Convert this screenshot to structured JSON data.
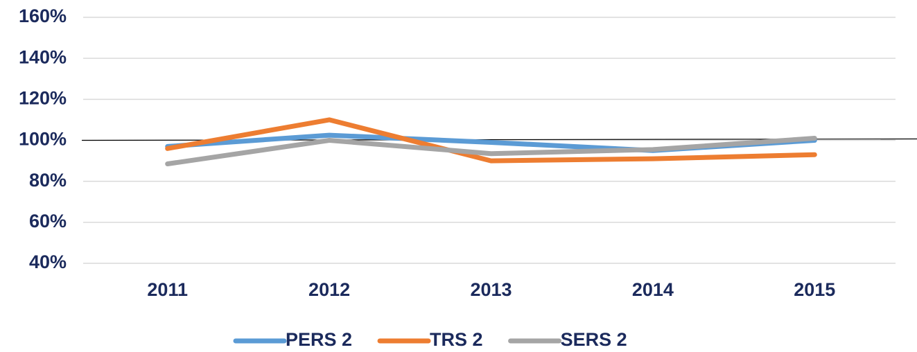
{
  "chart_data": {
    "type": "line",
    "categories": [
      "2011",
      "2012",
      "2013",
      "2014",
      "2015"
    ],
    "series": [
      {
        "name": "PERS 2",
        "color": "#5b9bd5",
        "values": [
          97,
          102.5,
          99,
          95,
          100
        ]
      },
      {
        "name": "TRS 2",
        "color": "#ed7d31",
        "values": [
          96,
          110,
          90,
          91,
          93
        ]
      },
      {
        "name": "SERS 2",
        "color": "#a5a5a5",
        "values": [
          88.5,
          100,
          93.5,
          95.5,
          101
        ]
      }
    ],
    "ylim": [
      40,
      160
    ],
    "yticks": [
      {
        "value": 40,
        "label": "40%"
      },
      {
        "value": 60,
        "label": "60%"
      },
      {
        "value": 80,
        "label": "80%"
      },
      {
        "value": 100,
        "label": "100%"
      },
      {
        "value": 120,
        "label": "120%"
      },
      {
        "value": 140,
        "label": "140%"
      },
      {
        "value": 160,
        "label": "160%"
      }
    ],
    "grid": true,
    "reference_line": 100,
    "legend": "bottom"
  }
}
